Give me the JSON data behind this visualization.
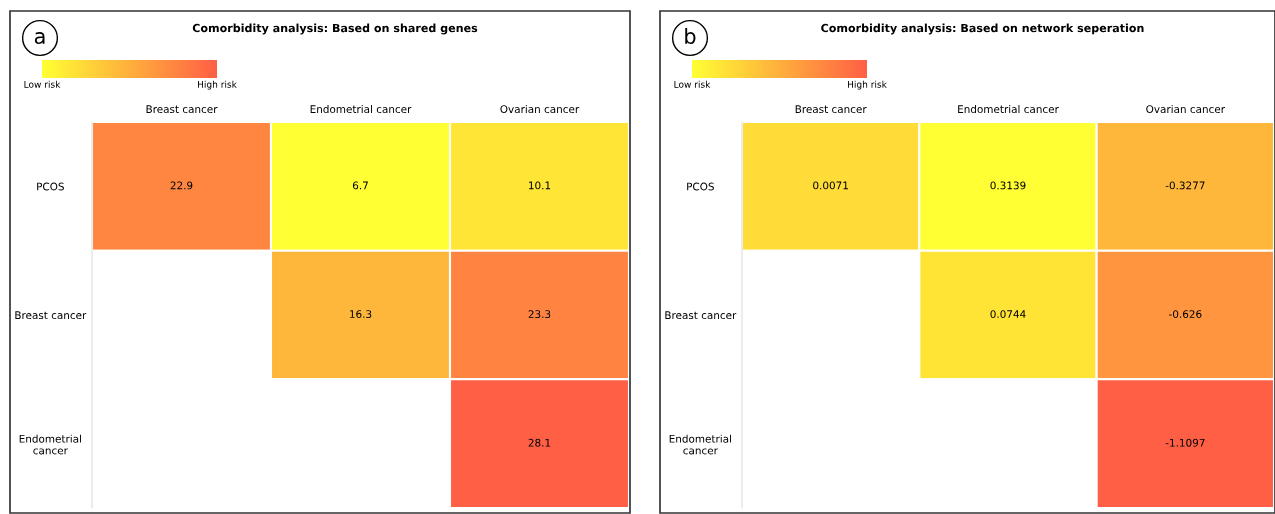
{
  "chart_data": [
    {
      "type": "heatmap",
      "title": "Comorbidity analysis: Based on shared genes",
      "annotations": [
        "a"
      ],
      "categories": [
        "Breast cancer",
        "Endometrial cancer",
        "Ovarian cancer"
      ],
      "y_categories": [
        "PCOS",
        "Breast cancer",
        "Endometrial\ncancer"
      ],
      "cells": [
        [
          22.9,
          6.7,
          10.1
        ],
        [
          null,
          16.3,
          23.3
        ],
        [
          null,
          null,
          28.1
        ]
      ],
      "clim": [
        6.7,
        28.1
      ],
      "cticks": [
        {
          "value": 6.7,
          "label": "Low risk"
        },
        {
          "value": 28.1,
          "label": "High risk"
        }
      ],
      "data_labels": true
    },
    {
      "type": "heatmap",
      "title": "Comorbidity analysis: Based on network seperation",
      "annotations": [
        "b"
      ],
      "categories": [
        "Breast cancer",
        "Endometrial cancer",
        "Ovarian cancer"
      ],
      "y_categories": [
        "PCOS",
        "Breast cancer",
        "Endometrial\ncancer"
      ],
      "cells": [
        [
          0.0071,
          0.3139,
          -0.3277
        ],
        [
          null,
          0.0744,
          -0.626
        ],
        [
          null,
          null,
          -1.1097
        ]
      ],
      "clim": [
        0.3139,
        -1.1097
      ],
      "cticks": [
        {
          "value": 0.3139,
          "label": "Low risk"
        },
        {
          "value": -1.1097,
          "label": "High risk"
        }
      ],
      "data_labels": true
    }
  ]
}
